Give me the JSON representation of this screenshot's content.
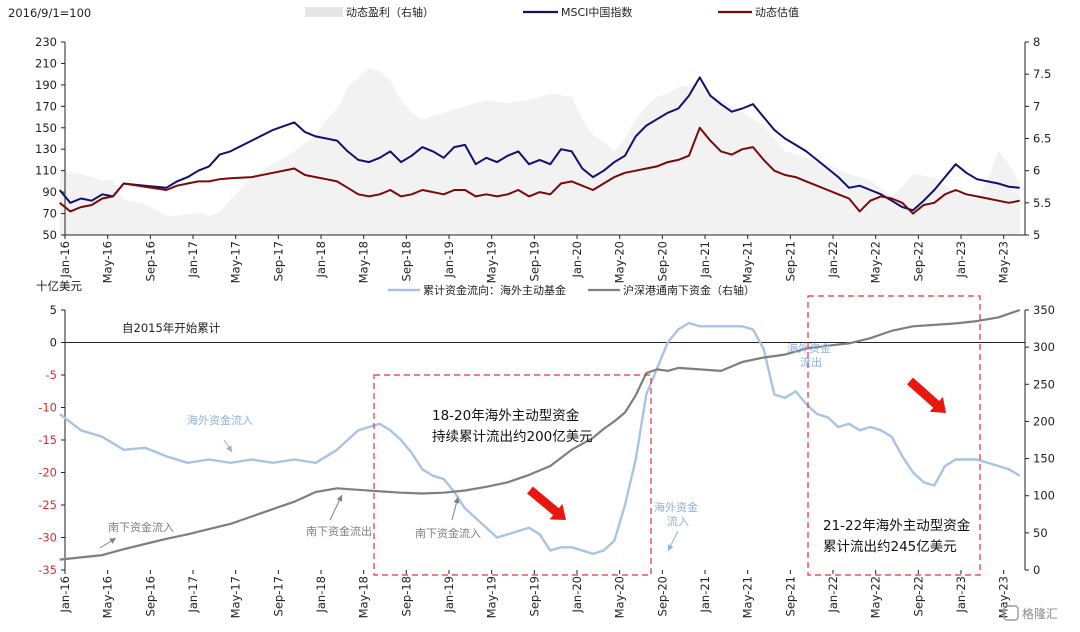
{
  "chart_data": [
    {
      "type": "line",
      "base_label": "2016/9/1=100",
      "legend": [
        "动态盈利（右轴）",
        "MSCI中国指数",
        "动态估值"
      ],
      "yticks_left": [
        "230",
        "210",
        "190",
        "170",
        "150",
        "130",
        "110",
        "90",
        "70",
        "50"
      ],
      "yticks_right": [
        "8",
        "7.5",
        "7",
        "6.5",
        "6",
        "5.5",
        "5"
      ],
      "xticks": [
        "Jan-16",
        "May-16",
        "Sep-16",
        "Jan-17",
        "May-17",
        "Sep-17",
        "Jan-18",
        "May-18",
        "Sep-18",
        "Jan-19",
        "May-19",
        "Sep-19",
        "Jan-20",
        "May-20",
        "Sep-20",
        "Jan-21",
        "May-21",
        "Sep-21",
        "Jan-22",
        "May-22",
        "Sep-22",
        "Jan-23",
        "May-23"
      ],
      "ylim_left": [
        50,
        230
      ],
      "ylim_right": [
        5,
        8
      ],
      "series": [
        {
          "name": "动态盈利（右轴）",
          "axis": "right",
          "style": "area",
          "color": "#f2f2f2",
          "x": [
            0,
            2,
            4,
            5,
            6,
            8,
            10,
            11,
            12,
            13,
            14,
            15,
            16,
            18,
            20,
            22,
            24,
            25,
            26,
            27,
            28,
            29,
            30,
            31,
            32,
            33,
            34,
            36,
            38,
            40,
            42,
            44,
            46,
            48,
            49,
            50,
            51,
            52,
            53,
            54,
            55,
            56,
            57,
            58,
            60,
            61,
            62,
            63,
            64,
            66,
            67,
            68,
            70,
            72,
            74,
            76,
            78,
            79,
            80,
            82,
            84,
            86,
            87,
            88,
            89,
            90
          ],
          "values": [
            6.0,
            5.95,
            5.85,
            5.85,
            5.55,
            5.48,
            5.3,
            5.3,
            5.32,
            5.35,
            5.3,
            5.35,
            5.55,
            5.9,
            6.1,
            6.3,
            6.55,
            6.8,
            6.95,
            7.3,
            7.45,
            7.6,
            7.55,
            7.4,
            7.1,
            6.9,
            6.8,
            6.9,
            7.0,
            7.1,
            7.05,
            7.1,
            7.2,
            7.15,
            6.8,
            6.55,
            6.45,
            6.3,
            6.5,
            6.8,
            7.0,
            7.15,
            7.2,
            7.3,
            7.35,
            7.2,
            7.1,
            7.0,
            6.9,
            6.7,
            6.5,
            6.3,
            6.2,
            6.1,
            5.95,
            5.85,
            5.6,
            5.75,
            5.95,
            5.9,
            5.65,
            5.55,
            5.85,
            6.3,
            6.1,
            5.8
          ]
        },
        {
          "name": "MSCI中国指数",
          "axis": "left",
          "color": "#10106e",
          "x": [
            0,
            1,
            2,
            3,
            4,
            5,
            6,
            8,
            10,
            11,
            12,
            13,
            14,
            15,
            16,
            18,
            20,
            22,
            23,
            24,
            25,
            26,
            27,
            28,
            29,
            30,
            31,
            32,
            33,
            34,
            35,
            36,
            37,
            38,
            39,
            40,
            41,
            42,
            43,
            44,
            45,
            46,
            47,
            48,
            49,
            50,
            51,
            52,
            53,
            54,
            55,
            56,
            57,
            58,
            59,
            60,
            61,
            62,
            63,
            64,
            65,
            66,
            67,
            68,
            69,
            70,
            71,
            72,
            73,
            74,
            75,
            76,
            77,
            78,
            79,
            80,
            81,
            82,
            83,
            84,
            85,
            86,
            87,
            88,
            89,
            90
          ],
          "values": [
            92,
            80,
            84,
            82,
            88,
            86,
            98,
            96,
            94,
            100,
            104,
            110,
            114,
            125,
            128,
            138,
            148,
            155,
            146,
            142,
            140,
            138,
            128,
            120,
            118,
            122,
            128,
            118,
            124,
            132,
            128,
            122,
            132,
            134,
            116,
            122,
            118,
            124,
            128,
            116,
            120,
            116,
            130,
            128,
            112,
            104,
            110,
            118,
            124,
            142,
            152,
            158,
            164,
            168,
            180,
            197,
            180,
            172,
            165,
            168,
            172,
            160,
            148,
            140,
            134,
            128,
            120,
            112,
            104,
            94,
            96,
            92,
            88,
            82,
            76,
            73,
            82,
            92,
            104,
            116,
            108,
            102,
            100,
            98,
            95,
            94
          ]
        },
        {
          "name": "动态估值",
          "axis": "left",
          "color": "#7a0a0a",
          "x": [
            0,
            1,
            2,
            3,
            4,
            5,
            6,
            8,
            10,
            11,
            12,
            13,
            14,
            15,
            16,
            18,
            20,
            22,
            23,
            24,
            25,
            26,
            27,
            28,
            29,
            30,
            31,
            32,
            33,
            34,
            35,
            36,
            37,
            38,
            39,
            40,
            41,
            42,
            43,
            44,
            45,
            46,
            47,
            48,
            49,
            50,
            51,
            52,
            53,
            54,
            55,
            56,
            57,
            58,
            59,
            60,
            61,
            62,
            63,
            64,
            65,
            66,
            67,
            68,
            69,
            70,
            71,
            72,
            73,
            74,
            75,
            76,
            77,
            78,
            79,
            80,
            81,
            82,
            83,
            84,
            85,
            86,
            87,
            88,
            89,
            90
          ],
          "values": [
            80,
            72,
            76,
            78,
            84,
            86,
            98,
            95,
            92,
            96,
            98,
            100,
            100,
            102,
            103,
            104,
            108,
            112,
            106,
            104,
            102,
            100,
            94,
            88,
            86,
            88,
            92,
            86,
            88,
            92,
            90,
            88,
            92,
            92,
            86,
            88,
            86,
            88,
            92,
            86,
            90,
            88,
            98,
            100,
            96,
            92,
            98,
            104,
            108,
            110,
            112,
            114,
            118,
            120,
            124,
            150,
            138,
            128,
            125,
            130,
            132,
            120,
            110,
            106,
            104,
            100,
            96,
            92,
            88,
            84,
            72,
            82,
            86,
            84,
            80,
            70,
            78,
            80,
            88,
            92,
            88,
            86,
            84,
            82,
            80,
            82
          ]
        }
      ]
    },
    {
      "type": "line",
      "ylabel_left": "十亿美元",
      "title": "自2015年开始累计",
      "legend": [
        "累计资金流向：海外主动基金",
        "沪深港通南下资金（右轴）"
      ],
      "yticks_left": [
        "5",
        "0",
        "-5",
        "-10",
        "-15",
        "-20",
        "-25",
        "-30",
        "-35"
      ],
      "yticks_right": [
        "350",
        "300",
        "250",
        "200",
        "150",
        "100",
        "50",
        "0"
      ],
      "xticks": [
        "Jan-16",
        "May-16",
        "Sep-16",
        "Jan-17",
        "May-17",
        "Sep-17",
        "Jan-18",
        "May-18",
        "Sep-18",
        "Jan-19",
        "May-19",
        "Sep-19",
        "Jan-20",
        "May-20",
        "Sep-20",
        "Jan-21",
        "May-21",
        "Sep-21",
        "Jan-22",
        "May-22",
        "Sep-22",
        "Jan-23",
        "May-23"
      ],
      "ylim_left": [
        -35,
        5
      ],
      "ylim_right": [
        0,
        350
      ],
      "series": [
        {
          "name": "累计资金流向：海外主动基金",
          "axis": "left",
          "color": "#a9c4e2",
          "x": [
            0,
            2,
            4,
            6,
            8,
            10,
            12,
            14,
            16,
            18,
            20,
            22,
            24,
            26,
            28,
            29,
            30,
            31,
            32,
            33,
            34,
            35,
            36,
            37,
            38,
            40,
            41,
            42,
            43,
            44,
            45,
            46,
            47,
            48,
            49,
            50,
            51,
            52,
            53,
            54,
            55,
            56,
            57,
            58,
            59,
            60,
            61,
            62,
            63,
            64,
            65,
            66,
            67,
            68,
            69,
            70,
            71,
            72,
            73,
            74,
            75,
            76,
            77,
            78,
            79,
            80,
            81,
            82,
            83,
            84,
            85,
            86,
            87,
            88,
            89,
            90
          ],
          "values": [
            -11,
            -13.5,
            -14.5,
            -16.5,
            -16.2,
            -17.5,
            -18.5,
            -18,
            -18.5,
            -18,
            -18.5,
            -18,
            -18.5,
            -16.5,
            -13.5,
            -13,
            -12.5,
            -13.5,
            -15,
            -17,
            -19.5,
            -20.5,
            -21,
            -23,
            -25.5,
            -28.5,
            -30,
            -29.5,
            -29,
            -28.5,
            -29.5,
            -32,
            -31.5,
            -31.5,
            -32,
            -32.5,
            -32,
            -30.5,
            -25,
            -18,
            -8,
            -4,
            0,
            2,
            3,
            2.5,
            2.5,
            2.5,
            2.5,
            2.5,
            2,
            -1,
            -8,
            -8.5,
            -7.5,
            -9.5,
            -11,
            -11.5,
            -13,
            -12.5,
            -13.5,
            -13,
            -13.5,
            -14.5,
            -17.5,
            -20,
            -21.5,
            -22,
            -19,
            -18,
            -18,
            -18,
            -18.5,
            -19,
            -19.5,
            -20.5
          ]
        },
        {
          "name": "沪深港通南下资金（右轴）",
          "axis": "right",
          "color": "#7f7f7f",
          "x": [
            0,
            4,
            6,
            8,
            10,
            12,
            14,
            16,
            18,
            20,
            22,
            24,
            26,
            28,
            30,
            32,
            34,
            36,
            38,
            40,
            42,
            44,
            46,
            48,
            50,
            51,
            52,
            53,
            54,
            55,
            56,
            57,
            58,
            60,
            62,
            64,
            66,
            68,
            70,
            72,
            74,
            76,
            78,
            80,
            82,
            84,
            86,
            88,
            90
          ],
          "values": [
            14,
            20,
            28,
            35,
            42,
            48,
            55,
            62,
            72,
            82,
            92,
            105,
            110,
            108,
            106,
            104,
            103,
            104,
            107,
            112,
            118,
            128,
            140,
            162,
            178,
            190,
            200,
            212,
            235,
            265,
            270,
            268,
            272,
            270,
            268,
            280,
            286,
            290,
            298,
            302,
            305,
            312,
            322,
            328,
            330,
            332,
            335,
            340,
            350
          ]
        }
      ]
    }
  ],
  "annotations": {
    "overseas_inflow_1": "海外资金流入",
    "overseas_outflow": "海外资金\n流出",
    "overseas_inflow_2": "海外资金\n流入",
    "south_inflow_1": "南下资金流入",
    "south_outflow": "南下资金流出",
    "south_inflow_2": "南下资金流入",
    "box1_line1": "18-20年海外主动型资金",
    "box1_line2": "持续累计流出约200亿美元",
    "box2_line1": "21-22年海外主动型资金",
    "box2_line2": "累计流出约245亿美元"
  },
  "watermark": "格隆汇",
  "colors": {
    "accent_red": "#e8170f",
    "box_border": "#e8303a",
    "negative_tick": "#d92c2c"
  }
}
